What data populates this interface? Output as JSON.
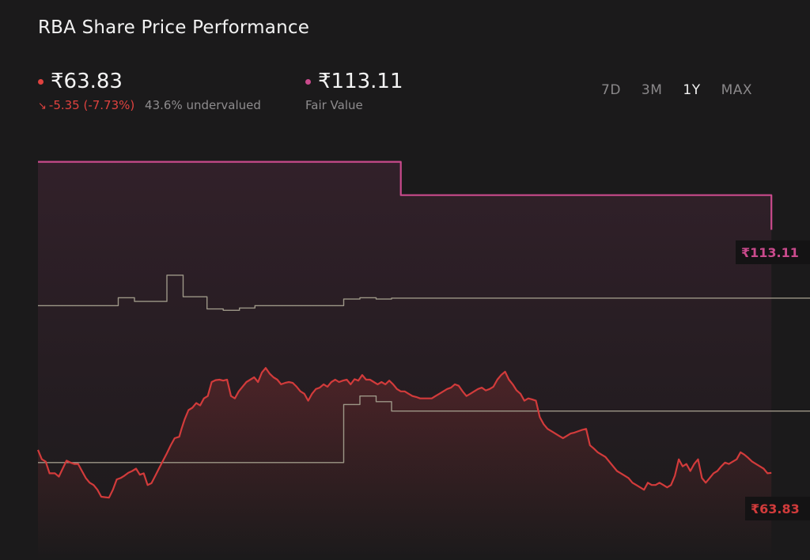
{
  "title": "RBA Share Price Performance",
  "price": {
    "value": "₹63.83",
    "change": "-5.35 (-7.73%)",
    "valuation": "43.6% undervalued",
    "color": "#e0423f"
  },
  "fair_value": {
    "value": "₹113.11",
    "label": "Fair Value",
    "color": "#c94a8c"
  },
  "tabs": [
    {
      "label": "7D",
      "active": false
    },
    {
      "label": "3M",
      "active": false
    },
    {
      "label": "1Y",
      "active": true
    },
    {
      "label": "MAX",
      "active": false
    }
  ],
  "chart_data": {
    "type": "line",
    "x_range": [
      0,
      100
    ],
    "y_range": [
      50,
      140
    ],
    "grid": false,
    "series": [
      {
        "key": "fair_value",
        "color": "#c94a8c",
        "step": true,
        "end_label": "₹113.11",
        "points": [
          [
            0,
            135
          ],
          [
            47,
            135
          ],
          [
            47,
            127.9
          ],
          [
            95,
            127.9
          ],
          [
            95,
            120.5
          ]
        ]
      },
      {
        "key": "line_upper",
        "color": "#9d9787",
        "step": true,
        "points": [
          [
            0,
            104.3
          ],
          [
            10.4,
            104.3
          ],
          [
            10.4,
            106
          ],
          [
            12.5,
            106
          ],
          [
            12.5,
            105.2
          ],
          [
            16.7,
            105.2
          ],
          [
            16.7,
            110.8
          ],
          [
            18.8,
            110.8
          ],
          [
            18.8,
            106.2
          ],
          [
            21.9,
            106.2
          ],
          [
            21.9,
            103.6
          ],
          [
            24,
            103.6
          ],
          [
            24,
            103.3
          ],
          [
            26.1,
            103.3
          ],
          [
            26.1,
            103.8
          ],
          [
            28.1,
            103.8
          ],
          [
            28.1,
            104.3
          ],
          [
            39.6,
            104.3
          ],
          [
            39.6,
            105.7
          ],
          [
            41.7,
            105.7
          ],
          [
            41.7,
            106
          ],
          [
            43.8,
            106
          ],
          [
            43.8,
            105.7
          ],
          [
            45.8,
            105.7
          ],
          [
            45.8,
            105.9
          ],
          [
            100,
            105.9
          ]
        ]
      },
      {
        "key": "line_lower",
        "color": "#9d9787",
        "step": true,
        "points": [
          [
            0,
            70.8
          ],
          [
            39.6,
            70.8
          ],
          [
            39.6,
            83.2
          ],
          [
            41.7,
            83.2
          ],
          [
            41.7,
            85
          ],
          [
            43.8,
            85
          ],
          [
            43.8,
            83.8
          ],
          [
            45.8,
            83.8
          ],
          [
            45.8,
            81.8
          ],
          [
            100,
            81.8
          ]
        ]
      },
      {
        "key": "share_price",
        "color": "#d23b3b",
        "step": false,
        "end_label": "₹63.83",
        "points": [
          [
            0,
            73.5
          ],
          [
            0.5,
            71.5
          ],
          [
            1,
            71
          ],
          [
            1.5,
            68.5
          ],
          [
            2.2,
            68.5
          ],
          [
            2.7,
            67.8
          ],
          [
            3.2,
            69.5
          ],
          [
            3.7,
            71.2
          ],
          [
            4.2,
            70.8
          ],
          [
            4.7,
            70.5
          ],
          [
            5.2,
            70.5
          ],
          [
            5.7,
            69
          ],
          [
            6.2,
            67.5
          ],
          [
            6.7,
            66.5
          ],
          [
            7.2,
            66
          ],
          [
            7.7,
            65
          ],
          [
            8.2,
            63.5
          ],
          [
            8.7,
            63.4
          ],
          [
            9.2,
            63.3
          ],
          [
            9.7,
            65
          ],
          [
            10.2,
            67.2
          ],
          [
            10.7,
            67.5
          ],
          [
            11.2,
            68
          ],
          [
            11.7,
            68.6
          ],
          [
            12.2,
            69
          ],
          [
            12.7,
            69.5
          ],
          [
            13.2,
            68.2
          ],
          [
            13.7,
            68.5
          ],
          [
            14.2,
            66
          ],
          [
            14.7,
            66.4
          ],
          [
            15.2,
            68
          ],
          [
            15.7,
            69.6
          ],
          [
            16.2,
            71.2
          ],
          [
            16.7,
            72.8
          ],
          [
            17.2,
            74.5
          ],
          [
            17.7,
            76
          ],
          [
            18.3,
            76.3
          ],
          [
            18.6,
            78
          ],
          [
            19,
            80
          ],
          [
            19.5,
            82
          ],
          [
            20,
            82.5
          ],
          [
            20.5,
            83.5
          ],
          [
            21,
            83
          ],
          [
            21.5,
            84.5
          ],
          [
            22,
            85
          ],
          [
            22.5,
            88
          ],
          [
            23,
            88.4
          ],
          [
            23.5,
            88.5
          ],
          [
            24,
            88.3
          ],
          [
            24.5,
            88.5
          ],
          [
            25,
            85
          ],
          [
            25.5,
            84.5
          ],
          [
            26,
            86
          ],
          [
            26.5,
            87
          ],
          [
            27,
            88
          ],
          [
            27.5,
            88.5
          ],
          [
            28,
            89
          ],
          [
            28.5,
            88
          ],
          [
            29,
            90
          ],
          [
            29.5,
            91
          ],
          [
            30,
            89.8
          ],
          [
            30.5,
            89
          ],
          [
            31,
            88.5
          ],
          [
            31.5,
            87.5
          ],
          [
            32,
            87.8
          ],
          [
            32.5,
            88
          ],
          [
            33,
            87.8
          ],
          [
            33.5,
            87
          ],
          [
            34,
            86
          ],
          [
            34.5,
            85.5
          ],
          [
            35,
            84
          ],
          [
            35.5,
            85.5
          ],
          [
            36,
            86.5
          ],
          [
            36.5,
            86.8
          ],
          [
            37,
            87.5
          ],
          [
            37.5,
            87
          ],
          [
            38,
            88
          ],
          [
            38.5,
            88.5
          ],
          [
            39,
            88
          ],
          [
            39.5,
            88.3
          ],
          [
            40,
            88.5
          ],
          [
            40.5,
            87.5
          ],
          [
            41,
            88.6
          ],
          [
            41.5,
            88.3
          ],
          [
            42,
            89.5
          ],
          [
            42.5,
            88.5
          ],
          [
            43,
            88.5
          ],
          [
            43.5,
            88
          ],
          [
            44,
            87.5
          ],
          [
            44.5,
            88
          ],
          [
            45,
            87.5
          ],
          [
            45.5,
            88.3
          ],
          [
            46,
            87.5
          ],
          [
            46.5,
            86.5
          ],
          [
            47,
            86
          ],
          [
            47.5,
            86
          ],
          [
            48,
            85.5
          ],
          [
            48.5,
            85
          ],
          [
            49,
            84.8
          ],
          [
            49.5,
            84.5
          ],
          [
            50,
            84.5
          ],
          [
            50.5,
            84.5
          ],
          [
            51,
            84.5
          ],
          [
            51.5,
            85
          ],
          [
            52,
            85.5
          ],
          [
            52.5,
            86
          ],
          [
            53,
            86.5
          ],
          [
            53.5,
            86.8
          ],
          [
            54,
            87.5
          ],
          [
            54.5,
            87.2
          ],
          [
            55,
            86
          ],
          [
            55.5,
            85
          ],
          [
            56,
            85.5
          ],
          [
            56.5,
            86
          ],
          [
            57,
            86.5
          ],
          [
            57.5,
            86.8
          ],
          [
            58,
            86.2
          ],
          [
            58.5,
            86.5
          ],
          [
            59,
            87
          ],
          [
            59.5,
            88.5
          ],
          [
            60,
            89.5
          ],
          [
            60.5,
            90.2
          ],
          [
            61,
            88.5
          ],
          [
            61.5,
            87.5
          ],
          [
            62,
            86.2
          ],
          [
            62.5,
            85.5
          ],
          [
            63,
            84
          ],
          [
            63.5,
            84.5
          ],
          [
            64,
            84.3
          ],
          [
            64.5,
            84
          ],
          [
            65,
            80.5
          ],
          [
            65.5,
            79
          ],
          [
            66,
            78
          ],
          [
            66.5,
            77.5
          ],
          [
            67,
            77
          ],
          [
            67.5,
            76.5
          ],
          [
            68,
            76
          ],
          [
            68.5,
            76.5
          ],
          [
            69,
            77
          ],
          [
            69.5,
            77.2
          ],
          [
            70,
            77.5
          ],
          [
            70.5,
            77.8
          ],
          [
            71,
            78
          ],
          [
            71.5,
            74.5
          ],
          [
            72,
            73.8
          ],
          [
            72.5,
            73
          ],
          [
            73,
            72.5
          ],
          [
            73.5,
            72
          ],
          [
            74,
            71
          ],
          [
            74.5,
            70
          ],
          [
            75,
            69
          ],
          [
            75.5,
            68.5
          ],
          [
            76,
            68
          ],
          [
            76.5,
            67.5
          ],
          [
            77,
            66.5
          ],
          [
            77.5,
            66
          ],
          [
            78,
            65.5
          ],
          [
            78.5,
            65
          ],
          [
            79,
            66.5
          ],
          [
            79.5,
            66
          ],
          [
            80,
            66
          ],
          [
            80.5,
            66.5
          ],
          [
            81,
            66
          ],
          [
            81.5,
            65.5
          ],
          [
            82,
            66
          ],
          [
            82.5,
            68
          ],
          [
            83,
            71.5
          ],
          [
            83.5,
            70
          ],
          [
            84,
            70.5
          ],
          [
            84.5,
            69
          ],
          [
            85,
            70.5
          ],
          [
            85.5,
            71.5
          ],
          [
            86,
            67.5
          ],
          [
            86.5,
            66.5
          ],
          [
            87,
            67.5
          ],
          [
            87.5,
            68.5
          ],
          [
            88,
            69
          ],
          [
            88.5,
            70
          ],
          [
            89,
            70.8
          ],
          [
            89.5,
            70.5
          ],
          [
            90,
            71
          ],
          [
            90.5,
            71.5
          ],
          [
            91,
            73
          ],
          [
            91.5,
            72.5
          ],
          [
            92,
            71.8
          ],
          [
            92.5,
            71
          ],
          [
            93,
            70.5
          ],
          [
            93.5,
            70
          ],
          [
            94,
            69.5
          ],
          [
            94.5,
            68.5
          ],
          [
            95,
            68.6
          ]
        ]
      }
    ]
  }
}
